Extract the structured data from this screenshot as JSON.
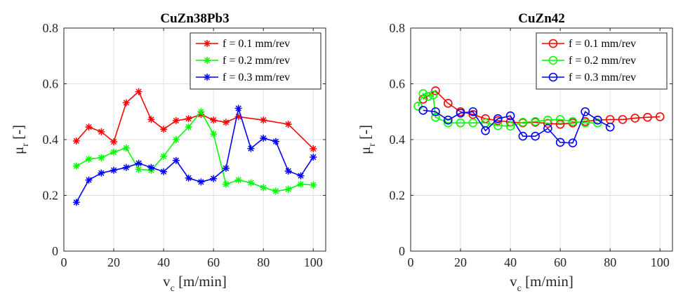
{
  "chart_data": [
    {
      "type": "line",
      "title": "CuZn38Pb3",
      "xlabel_main": "v",
      "xlabel_sub": "c",
      "xlabel_unit": " [m/min]",
      "ylabel_main": "μ",
      "ylabel_sub": "r",
      "ylabel_unit": " [-]",
      "xlim": [
        0,
        105
      ],
      "ylim": [
        0,
        0.8
      ],
      "xticks": [
        0,
        20,
        40,
        60,
        80,
        100
      ],
      "yticks": [
        0,
        0.2,
        0.4,
        0.6,
        0.8
      ],
      "xtick_labels": [
        "0",
        "20",
        "40",
        "60",
        "80",
        "100"
      ],
      "ytick_labels": [
        "0",
        "0.2",
        "0.4",
        "0.6",
        "0.8"
      ],
      "grid": true,
      "legend_position": "top-right",
      "marker": "asterisk",
      "series": [
        {
          "name": "f = 0.1 mm/rev",
          "color": "#ff0000",
          "x": [
            5,
            10,
            15,
            20,
            25,
            30,
            35,
            40,
            45,
            50,
            55,
            60,
            65,
            70,
            80,
            90,
            100
          ],
          "y": [
            0.395,
            0.445,
            0.428,
            0.392,
            0.532,
            0.572,
            0.472,
            0.437,
            0.468,
            0.475,
            0.49,
            0.47,
            0.462,
            0.482,
            0.47,
            0.455,
            0.367
          ]
        },
        {
          "name": "f = 0.2 mm/rev",
          "color": "#00ff00",
          "x": [
            5,
            10,
            15,
            20,
            25,
            30,
            35,
            40,
            45,
            50,
            55,
            60,
            65,
            70,
            75,
            80,
            85,
            90,
            95,
            100
          ],
          "y": [
            0.305,
            0.33,
            0.335,
            0.355,
            0.37,
            0.293,
            0.29,
            0.34,
            0.4,
            0.445,
            0.5,
            0.42,
            0.24,
            0.255,
            0.245,
            0.228,
            0.215,
            0.222,
            0.24,
            0.237
          ]
        },
        {
          "name": "f = 0.3 mm/rev",
          "color": "#0000ff",
          "x": [
            5,
            10,
            15,
            20,
            25,
            30,
            35,
            40,
            45,
            50,
            55,
            60,
            65,
            70,
            75,
            80,
            85,
            90,
            95,
            100
          ],
          "y": [
            0.175,
            0.255,
            0.28,
            0.29,
            0.3,
            0.315,
            0.3,
            0.285,
            0.325,
            0.262,
            0.248,
            0.26,
            0.297,
            0.512,
            0.368,
            0.405,
            0.393,
            0.287,
            0.27,
            0.337
          ]
        }
      ]
    },
    {
      "type": "line",
      "title": "CuZn42",
      "xlabel_main": "v",
      "xlabel_sub": "c",
      "xlabel_unit": " [m/min]",
      "ylabel_main": "μ",
      "ylabel_sub": "r",
      "ylabel_unit": " [-]",
      "xlim": [
        0,
        105
      ],
      "ylim": [
        0,
        0.8
      ],
      "xticks": [
        0,
        20,
        40,
        60,
        80,
        100
      ],
      "yticks": [
        0,
        0.2,
        0.4,
        0.6,
        0.8
      ],
      "xtick_labels": [
        "0",
        "20",
        "40",
        "60",
        "80",
        "100"
      ],
      "ytick_labels": [
        "0",
        "0.2",
        "0.4",
        "0.6",
        "0.8"
      ],
      "grid": true,
      "legend_position": "top-right",
      "marker": "circle",
      "series": [
        {
          "name": "f = 0.1 mm/rev",
          "color": "#ff0000",
          "x": [
            5,
            10,
            15,
            20,
            25,
            30,
            35,
            40,
            45,
            50,
            55,
            60,
            65,
            70,
            75,
            80,
            85,
            90,
            95,
            100
          ],
          "y": [
            0.545,
            0.575,
            0.53,
            0.5,
            0.49,
            0.475,
            0.468,
            0.463,
            0.46,
            0.462,
            0.458,
            0.455,
            0.46,
            0.465,
            0.47,
            0.472,
            0.472,
            0.477,
            0.48,
            0.482
          ]
        },
        {
          "name": "f = 0.2 mm/rev",
          "color": "#00ff00",
          "x": [
            3,
            5,
            7,
            9,
            10,
            15,
            20,
            25,
            30,
            35,
            40,
            45,
            50,
            55,
            60,
            65,
            70,
            75
          ],
          "y": [
            0.52,
            0.565,
            0.555,
            0.56,
            0.48,
            0.46,
            0.46,
            0.46,
            0.46,
            0.45,
            0.448,
            0.462,
            0.465,
            0.47,
            0.472,
            0.465,
            0.46,
            0.46
          ]
        },
        {
          "name": "f = 0.3 mm/rev",
          "color": "#0000ff",
          "x": [
            5,
            10,
            15,
            20,
            25,
            30,
            35,
            40,
            45,
            50,
            55,
            60,
            65,
            70,
            75,
            80
          ],
          "y": [
            0.505,
            0.5,
            0.47,
            0.495,
            0.5,
            0.432,
            0.475,
            0.485,
            0.412,
            0.412,
            0.44,
            0.39,
            0.388,
            0.5,
            0.47,
            0.445
          ]
        }
      ]
    }
  ]
}
